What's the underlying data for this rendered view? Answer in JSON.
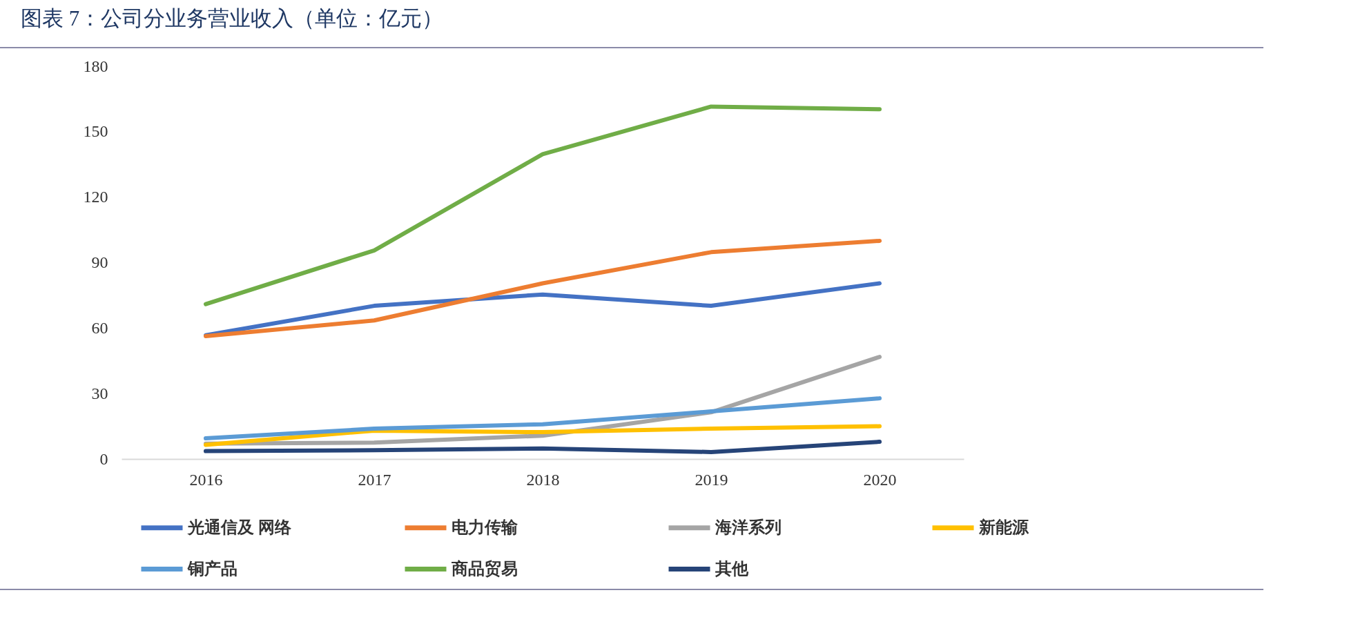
{
  "chart_data": {
    "type": "line",
    "title": "图表 7：公司分业务营业收入（单位：亿元）",
    "categories": [
      "2016",
      "2017",
      "2018",
      "2019",
      "2020"
    ],
    "ylim": [
      0,
      180
    ],
    "yticks": [
      0,
      30,
      60,
      90,
      120,
      150,
      180
    ],
    "legend": "bottom",
    "series": [
      {
        "name": "光通信及 网络",
        "color": "#4472c4",
        "values": [
          56.7,
          70.2,
          75.4,
          70.2,
          80.5
        ]
      },
      {
        "name": "电力传输",
        "color": "#ed7d31",
        "values": [
          56.3,
          63.5,
          80.5,
          94.8,
          100
        ]
      },
      {
        "name": "海洋系列",
        "color": "#a5a5a5",
        "values": [
          7,
          7.5,
          10.7,
          21.4,
          46.8
        ]
      },
      {
        "name": "新能源",
        "color": "#ffc000",
        "values": [
          6.5,
          13,
          12.3,
          13.9,
          15
        ]
      },
      {
        "name": "铜产品",
        "color": "#5b9bd5",
        "values": [
          9.5,
          13.9,
          15.9,
          21.8,
          27.8
        ]
      },
      {
        "name": "商品贸易",
        "color": "#70ad47",
        "values": [
          71,
          95.6,
          139.7,
          161.5,
          160.3
        ]
      },
      {
        "name": "其他",
        "color": "#264478",
        "values": [
          3.6,
          4,
          4.8,
          3.2,
          7.9
        ]
      }
    ]
  }
}
